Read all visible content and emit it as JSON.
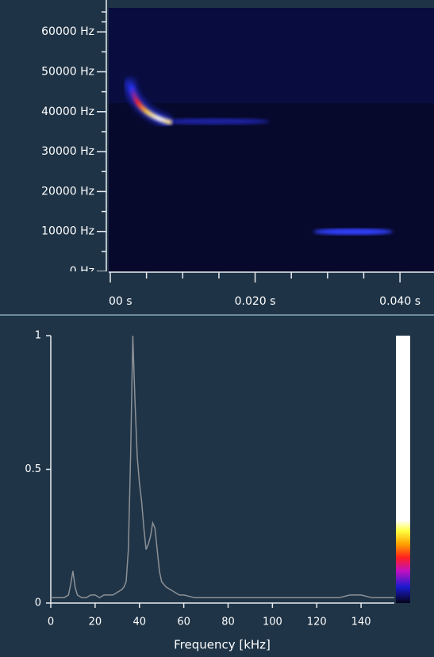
{
  "chart_data": [
    {
      "type": "heatmap",
      "ylim": [
        0,
        66000
      ],
      "yticks": [
        {
          "value": 0,
          "label": "0 Hz"
        },
        {
          "value": 10000,
          "label": "10000 Hz"
        },
        {
          "value": 20000,
          "label": "20000 Hz"
        },
        {
          "value": 30000,
          "label": "30000 Hz"
        },
        {
          "value": 40000,
          "label": "40000 Hz"
        },
        {
          "value": 50000,
          "label": "50000 Hz"
        },
        {
          "value": 60000,
          "label": "60000 Hz"
        }
      ],
      "yminorticks": [
        5000,
        15000,
        25000,
        35000,
        45000,
        55000,
        62500,
        65000
      ],
      "xlim": [
        0,
        0.0447
      ],
      "xticks": [
        {
          "value": 0,
          "label": "00 s"
        },
        {
          "value": 0.02,
          "label": "0.020 s"
        },
        {
          "value": 0.04,
          "label": "0.040 s"
        }
      ],
      "xminorticks": [
        0.005,
        0.01,
        0.015,
        0.025,
        0.03,
        0.035
      ]
    },
    {
      "type": "line",
      "x": [
        0,
        2,
        4,
        6,
        8,
        9,
        10,
        11,
        12,
        14,
        16,
        18,
        20,
        22,
        24,
        26,
        28,
        30,
        32,
        33,
        34,
        35,
        36,
        37,
        38,
        39,
        40,
        41,
        42,
        43,
        44,
        45,
        46,
        47,
        48,
        49,
        50,
        52,
        54,
        56,
        58,
        60,
        65,
        70,
        80,
        90,
        100,
        110,
        120,
        130,
        135,
        140,
        145,
        150,
        155
      ],
      "values": [
        0.02,
        0.02,
        0.02,
        0.02,
        0.03,
        0.07,
        0.12,
        0.06,
        0.03,
        0.02,
        0.02,
        0.03,
        0.03,
        0.02,
        0.03,
        0.03,
        0.03,
        0.04,
        0.05,
        0.06,
        0.08,
        0.2,
        0.55,
        1.0,
        0.75,
        0.55,
        0.45,
        0.38,
        0.28,
        0.2,
        0.22,
        0.25,
        0.3,
        0.28,
        0.2,
        0.12,
        0.08,
        0.06,
        0.05,
        0.04,
        0.03,
        0.03,
        0.02,
        0.02,
        0.02,
        0.02,
        0.02,
        0.02,
        0.02,
        0.02,
        0.03,
        0.03,
        0.02,
        0.02,
        0.02
      ],
      "color": "#8c9196",
      "xlim": [
        0,
        155
      ],
      "ylim": [
        0,
        1
      ],
      "xticks": [
        0,
        20,
        40,
        60,
        80,
        100,
        120,
        140
      ],
      "yticks": [
        0,
        {
          "value": 0.5,
          "label": "0.5"
        },
        1
      ],
      "xlabel": "Frequency [kHz]",
      "colormap": [
        "#05051a",
        "#1a1ad0",
        "#c010c0",
        "#ff2020",
        "#ffa000",
        "#ffff40",
        "#ffffff",
        "#ffffff"
      ]
    }
  ]
}
